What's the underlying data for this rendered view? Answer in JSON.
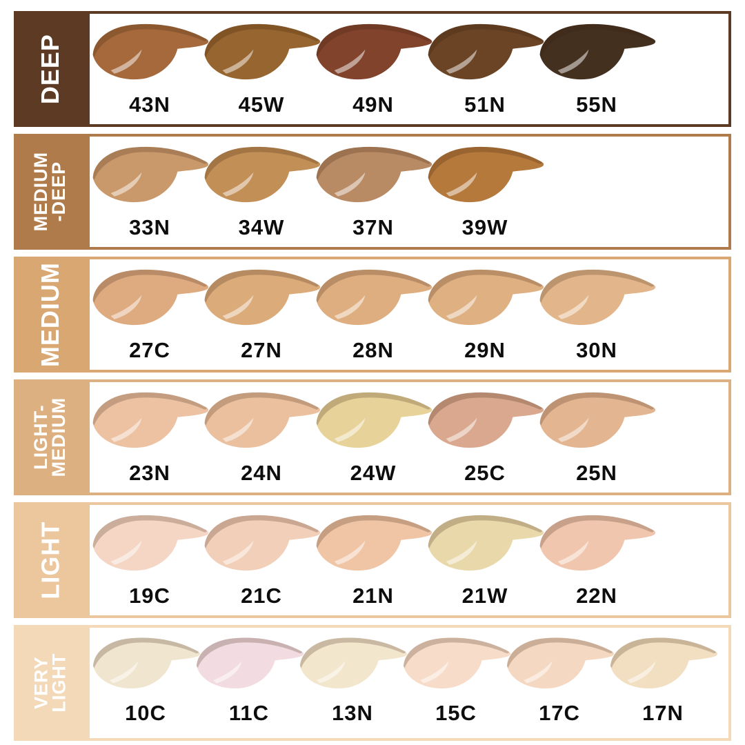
{
  "page": {
    "background": "#ffffff"
  },
  "shade_rows": [
    {
      "label": "DEEP",
      "label_lines": [
        "DEEP"
      ],
      "color": "#5d3a23",
      "swatches": [
        {
          "code": "43N",
          "color": "#a5693c"
        },
        {
          "code": "45W",
          "color": "#97652f"
        },
        {
          "code": "49N",
          "color": "#81432c"
        },
        {
          "code": "51N",
          "color": "#6a4425"
        },
        {
          "code": "55N",
          "color": "#44301f"
        }
      ]
    },
    {
      "label": "MEDIUM-DEEP",
      "label_lines": [
        "MEDIUM",
        "-DEEP"
      ],
      "color": "#b07b4a",
      "swatches": [
        {
          "code": "33N",
          "color": "#c9996b"
        },
        {
          "code": "34W",
          "color": "#c28f57"
        },
        {
          "code": "37N",
          "color": "#b98b64"
        },
        {
          "code": "39W",
          "color": "#b5793c"
        }
      ]
    },
    {
      "label": "MEDIUM",
      "label_lines": [
        "MEDIUM"
      ],
      "color": "#d9a772",
      "swatches": [
        {
          "code": "27C",
          "color": "#deab81"
        },
        {
          "code": "27N",
          "color": "#dcab7a"
        },
        {
          "code": "28N",
          "color": "#deae80"
        },
        {
          "code": "29N",
          "color": "#dfb082"
        },
        {
          "code": "30N",
          "color": "#e2b68a"
        }
      ]
    },
    {
      "label": "LIGHT-MEDIUM",
      "label_lines": [
        "LIGHT-",
        "MEDIUM"
      ],
      "color": "#dcb080",
      "swatches": [
        {
          "code": "23N",
          "color": "#ecc2a2"
        },
        {
          "code": "24N",
          "color": "#eac09e"
        },
        {
          "code": "24W",
          "color": "#e7d29a"
        },
        {
          "code": "25C",
          "color": "#d9a88e"
        },
        {
          "code": "25N",
          "color": "#e3b591"
        }
      ]
    },
    {
      "label": "LIGHT",
      "label_lines": [
        "LIGHT"
      ],
      "color": "#ecc79e",
      "swatches": [
        {
          "code": "19C",
          "color": "#f5d6c5"
        },
        {
          "code": "21C",
          "color": "#f2cfb9"
        },
        {
          "code": "21N",
          "color": "#efc5a6"
        },
        {
          "code": "21W",
          "color": "#e9d8aa"
        },
        {
          "code": "22N",
          "color": "#f0c7ae"
        }
      ]
    },
    {
      "label": "VERY LIGHT",
      "label_lines": [
        "VERY",
        "LIGHT"
      ],
      "color": "#f3d9b8",
      "swatches": [
        {
          "code": "10C",
          "color": "#f0e5cf"
        },
        {
          "code": "11C",
          "color": "#f3dce1"
        },
        {
          "code": "13N",
          "color": "#f2e6cd"
        },
        {
          "code": "15C",
          "color": "#f7dcc9"
        },
        {
          "code": "17C",
          "color": "#f5d8c1"
        },
        {
          "code": "17N",
          "color": "#f2dfc1"
        }
      ]
    }
  ],
  "chart_data": {
    "type": "table",
    "categories": [
      "DEEP",
      "MEDIUM-DEEP",
      "MEDIUM",
      "LIGHT-MEDIUM",
      "LIGHT",
      "VERY LIGHT"
    ],
    "series": [
      {
        "name": "DEEP",
        "category_color": "#5d3a23",
        "shade_codes": [
          "43N",
          "45W",
          "49N",
          "51N",
          "55N"
        ],
        "shade_colors": [
          "#a5693c",
          "#97652f",
          "#81432c",
          "#6a4425",
          "#44301f"
        ]
      },
      {
        "name": "MEDIUM-DEEP",
        "category_color": "#b07b4a",
        "shade_codes": [
          "33N",
          "34W",
          "37N",
          "39W"
        ],
        "shade_colors": [
          "#c9996b",
          "#c28f57",
          "#b98b64",
          "#b5793c"
        ]
      },
      {
        "name": "MEDIUM",
        "category_color": "#d9a772",
        "shade_codes": [
          "27C",
          "27N",
          "28N",
          "29N",
          "30N"
        ],
        "shade_colors": [
          "#deab81",
          "#dcab7a",
          "#deae80",
          "#dfb082",
          "#e2b68a"
        ]
      },
      {
        "name": "LIGHT-MEDIUM",
        "category_color": "#dcb080",
        "shade_codes": [
          "23N",
          "24N",
          "24W",
          "25C",
          "25N"
        ],
        "shade_colors": [
          "#ecc2a2",
          "#eac09e",
          "#e7d29a",
          "#d9a88e",
          "#e3b591"
        ]
      },
      {
        "name": "LIGHT",
        "category_color": "#ecc79e",
        "shade_codes": [
          "19C",
          "21C",
          "21N",
          "21W",
          "22N"
        ],
        "shade_colors": [
          "#f5d6c5",
          "#f2cfb9",
          "#efc5a6",
          "#e9d8aa",
          "#f0c7ae"
        ]
      },
      {
        "name": "VERY LIGHT",
        "category_color": "#f3d9b8",
        "shade_codes": [
          "10C",
          "11C",
          "13N",
          "15C",
          "17C",
          "17N"
        ],
        "shade_colors": [
          "#f0e5cf",
          "#f3dce1",
          "#f2e6cd",
          "#f7dcc9",
          "#f5d8c1",
          "#f2dfc1"
        ]
      }
    ],
    "legend_position": "left",
    "grid": false
  }
}
